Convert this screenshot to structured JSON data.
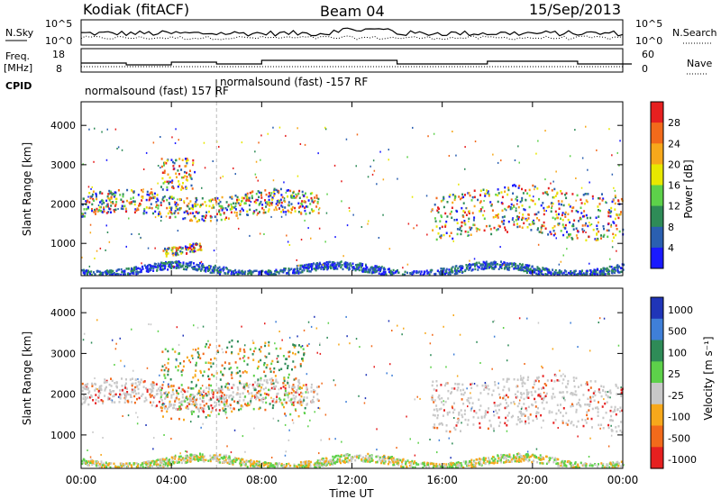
{
  "header": {
    "radar": "Kodiak (fitACF)",
    "beam": "Beam 04",
    "date": "15/Sep/2013"
  },
  "top_panels": {
    "nsky_label": "N.Sky",
    "nsky_ticks": [
      "10^5",
      "10^0"
    ],
    "nsky_right_ticks": [
      "10^5",
      "10^0"
    ],
    "nsearch_label": "N.Search",
    "freq_label": "Freq.",
    "freq_unit": "[MHz]",
    "freq_ticks": [
      "18",
      "8"
    ],
    "nave_label": "Nave",
    "nave_ticks": [
      "60",
      "0"
    ],
    "cpid_label": "CPID",
    "cpid_segments": [
      {
        "text": "normalsound (fast) 157 RF",
        "start_hour": 0
      },
      {
        "text": "normalsound (fast) -157 RF",
        "start_hour": 6
      }
    ]
  },
  "chart_data": [
    {
      "type": "heatmap",
      "panel": "power",
      "xlabel": "",
      "ylabel": "Slant Range [km]",
      "xlim": [
        0,
        24
      ],
      "ylim": [
        180,
        4600
      ],
      "yticks": [
        "1000",
        "2000",
        "3000",
        "4000"
      ],
      "colorbar_label": "Power [dB]",
      "colorbar_ticks": [
        "4",
        "8",
        "12",
        "16",
        "20",
        "24",
        "28"
      ],
      "colorbar_colors": [
        "#1a1aff",
        "#2a5fb0",
        "#2e8b57",
        "#5dd14a",
        "#e8e800",
        "#f7a81b",
        "#f26a1b",
        "#e62020"
      ],
      "features": [
        {
          "name": "echo band",
          "t_range": [
            0,
            10.5
          ],
          "range_km_center": [
            1700,
            2300
          ],
          "power_db": [
            8,
            28
          ]
        },
        {
          "name": "upper echoes",
          "t_range": [
            3.5,
            5
          ],
          "range_km_center": [
            2500,
            3300
          ],
          "power_db": [
            12,
            24
          ]
        },
        {
          "name": "low patch",
          "t_range": [
            3.6,
            5.3
          ],
          "range_km_center": [
            780,
            1000
          ],
          "power_db": [
            4,
            16
          ]
        },
        {
          "name": "afternoon band",
          "t_range": [
            15.5,
            24
          ],
          "range_km_center": [
            1200,
            2400
          ],
          "power_db": [
            8,
            28
          ]
        },
        {
          "name": "near-range noise",
          "t_range": [
            0,
            24
          ],
          "range_km_center": [
            250,
            450
          ],
          "power_db": [
            4,
            12
          ]
        }
      ]
    },
    {
      "type": "heatmap",
      "panel": "velocity",
      "xlabel": "Time UT",
      "ylabel": "Slant Range [km]",
      "xlim": [
        0,
        24
      ],
      "ylim": [
        180,
        4600
      ],
      "yticks": [
        "1000",
        "2000",
        "3000",
        "4000"
      ],
      "xticks": [
        "00:00",
        "04:00",
        "08:00",
        "12:00",
        "16:00",
        "20:00",
        "00:00"
      ],
      "colorbar_label": "Velocity [m s⁻¹]",
      "colorbar_ticks": [
        "1000",
        "500",
        "100",
        "25",
        "-25",
        "-100",
        "-500",
        "-1000"
      ],
      "colorbar_colors": [
        "#2035b8",
        "#3f7fd8",
        "#2e8b57",
        "#5dd14a",
        "#c8c8c8",
        "#f7a81b",
        "#f26a1b",
        "#e62020"
      ],
      "features": [
        {
          "name": "ground scatter band",
          "t_range": [
            0,
            10.5
          ],
          "range_km_center": [
            1700,
            2300
          ],
          "velocity": [
            -25,
            25
          ]
        },
        {
          "name": "mixed echoes",
          "t_range": [
            3.5,
            10
          ],
          "range_km_center": [
            1500,
            3300
          ],
          "velocity": [
            -500,
            500
          ]
        },
        {
          "name": "afternoon band",
          "t_range": [
            15.5,
            24
          ],
          "range_km_center": [
            1200,
            2400
          ],
          "velocity": [
            -25,
            25
          ]
        },
        {
          "name": "near-range",
          "t_range": [
            0,
            24
          ],
          "range_km_center": [
            250,
            450
          ],
          "velocity": [
            -100,
            100
          ]
        }
      ]
    }
  ]
}
